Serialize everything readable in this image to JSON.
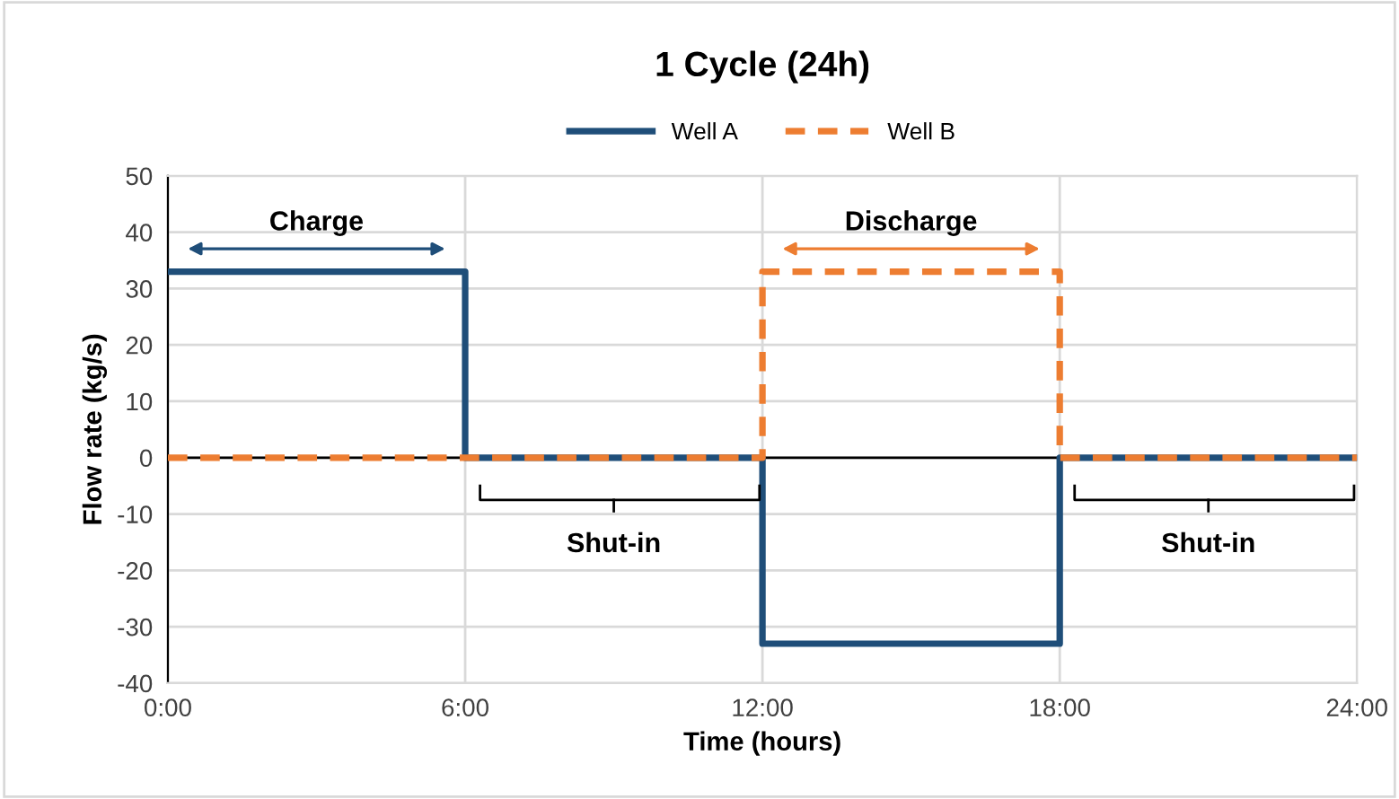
{
  "chart_data": {
    "type": "step",
    "title": "1 Cycle (24h)",
    "xlabel": "Time (hours)",
    "ylabel": "Flow rate (kg/s)",
    "x": [
      0,
      6,
      12,
      18,
      24
    ],
    "series": [
      {
        "name": "Well A",
        "color": "#1f4e79",
        "values": [
          33,
          0,
          -33,
          0,
          0
        ],
        "line_style": "solid"
      },
      {
        "name": "Well B",
        "color": "#ed7d31",
        "values": [
          0,
          0,
          33,
          0,
          0
        ],
        "line_style": "dashed"
      }
    ],
    "xlim": [
      0,
      24
    ],
    "xticks": [
      {
        "value": 0,
        "label": "0:00"
      },
      {
        "value": 6,
        "label": "6:00"
      },
      {
        "value": 12,
        "label": "12:00"
      },
      {
        "value": 18,
        "label": "18:00"
      },
      {
        "value": 24,
        "label": "24:00"
      }
    ],
    "ylim": [
      -40,
      50
    ],
    "yticks": [
      -40,
      -30,
      -20,
      -10,
      0,
      10,
      20,
      30,
      40,
      50
    ],
    "ref_lines": [
      {
        "axis": "y",
        "value": 0,
        "color": "#000000"
      }
    ],
    "annotations": [
      "Charge",
      "Shut-in",
      "Discharge",
      "Shut-in"
    ],
    "grid": true,
    "legend": "top",
    "marker": "none"
  }
}
